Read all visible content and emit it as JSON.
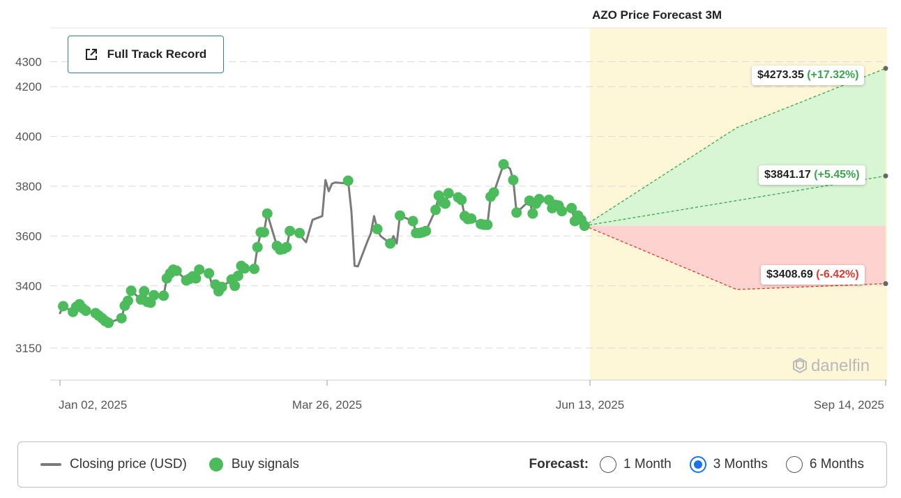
{
  "chart_data": {
    "type": "line",
    "title": "AZO Price Forecast 3M",
    "y_ticks": [
      3150,
      3400,
      3600,
      3800,
      4000,
      4200,
      4300
    ],
    "x_ticks": [
      "Jan 02, 2025",
      "Mar 26, 2025",
      "Jun 13, 2025",
      "Sep 14, 2025"
    ],
    "y_range": [
      3050,
      4400
    ],
    "x_range": [
      "2025-01-02",
      "2025-09-14"
    ],
    "grid": true,
    "series": [
      {
        "name": "Closing price (USD)",
        "points": [
          [
            "2025-01-02",
            3290
          ],
          [
            "2025-01-03",
            3318
          ],
          [
            "2025-01-06",
            3295
          ],
          [
            "2025-01-07",
            3315
          ],
          [
            "2025-01-08",
            3326
          ],
          [
            "2025-01-09",
            3310
          ],
          [
            "2025-01-10",
            3300
          ],
          [
            "2025-01-13",
            3290
          ],
          [
            "2025-01-14",
            3280
          ],
          [
            "2025-01-15",
            3270
          ],
          [
            "2025-01-16",
            3258
          ],
          [
            "2025-01-17",
            3251
          ],
          [
            "2025-01-21",
            3270
          ],
          [
            "2025-01-22",
            3320
          ],
          [
            "2025-01-23",
            3340
          ],
          [
            "2025-01-24",
            3380
          ],
          [
            "2025-01-27",
            3345
          ],
          [
            "2025-01-28",
            3378
          ],
          [
            "2025-01-29",
            3335
          ],
          [
            "2025-01-30",
            3332
          ],
          [
            "2025-01-31",
            3362
          ],
          [
            "2025-02-03",
            3360
          ],
          [
            "2025-02-04",
            3430
          ],
          [
            "2025-02-05",
            3450
          ],
          [
            "2025-02-06",
            3465
          ],
          [
            "2025-02-07",
            3460
          ],
          [
            "2025-02-10",
            3422
          ],
          [
            "2025-02-11",
            3428
          ],
          [
            "2025-02-12",
            3438
          ],
          [
            "2025-02-13",
            3430
          ],
          [
            "2025-02-14",
            3465
          ],
          [
            "2025-02-17",
            3450
          ],
          [
            "2025-02-18",
            3400
          ],
          [
            "2025-02-19",
            3405
          ],
          [
            "2025-02-20",
            3378
          ],
          [
            "2025-02-21",
            3395
          ],
          [
            "2025-02-24",
            3425
          ],
          [
            "2025-02-25",
            3400
          ],
          [
            "2025-02-26",
            3440
          ],
          [
            "2025-02-27",
            3480
          ],
          [
            "2025-02-28",
            3470
          ],
          [
            "2025-03-03",
            3468
          ],
          [
            "2025-03-04",
            3555
          ],
          [
            "2025-03-05",
            3615
          ],
          [
            "2025-03-06",
            3615
          ],
          [
            "2025-03-07",
            3690
          ],
          [
            "2025-03-10",
            3560
          ],
          [
            "2025-03-11",
            3545
          ],
          [
            "2025-03-12",
            3548
          ],
          [
            "2025-03-13",
            3555
          ],
          [
            "2025-03-14",
            3620
          ],
          [
            "2025-03-17",
            3612
          ],
          [
            "2025-03-18",
            3590
          ],
          [
            "2025-03-19",
            3575
          ],
          [
            "2025-03-20",
            3620
          ],
          [
            "2025-03-21",
            3665
          ],
          [
            "2025-03-24",
            3680
          ],
          [
            "2025-03-25",
            3825
          ],
          [
            "2025-03-26",
            3780
          ],
          [
            "2025-03-27",
            3810
          ],
          [
            "2025-03-28",
            3815
          ],
          [
            "2025-03-31",
            3812
          ],
          [
            "2025-04-01",
            3822
          ],
          [
            "2025-04-02",
            3700
          ],
          [
            "2025-04-03",
            3480
          ],
          [
            "2025-04-04",
            3478
          ],
          [
            "2025-04-07",
            3580
          ],
          [
            "2025-04-08",
            3610
          ],
          [
            "2025-04-09",
            3680
          ],
          [
            "2025-04-10",
            3628
          ],
          [
            "2025-04-11",
            3600
          ],
          [
            "2025-04-14",
            3570
          ],
          [
            "2025-04-15",
            3600
          ],
          [
            "2025-04-16",
            3570
          ],
          [
            "2025-04-17",
            3682
          ],
          [
            "2025-04-21",
            3660
          ],
          [
            "2025-04-22",
            3612
          ],
          [
            "2025-04-23",
            3612
          ],
          [
            "2025-04-24",
            3615
          ],
          [
            "2025-04-25",
            3620
          ],
          [
            "2025-04-28",
            3705
          ],
          [
            "2025-04-29",
            3762
          ],
          [
            "2025-04-30",
            3738
          ],
          [
            "2025-05-01",
            3730
          ],
          [
            "2025-05-02",
            3772
          ],
          [
            "2025-05-05",
            3755
          ],
          [
            "2025-05-06",
            3745
          ],
          [
            "2025-05-07",
            3680
          ],
          [
            "2025-05-08",
            3668
          ],
          [
            "2025-05-09",
            3670
          ],
          [
            "2025-05-12",
            3648
          ],
          [
            "2025-05-13",
            3645
          ],
          [
            "2025-05-14",
            3645
          ],
          [
            "2025-05-15",
            3758
          ],
          [
            "2025-05-16",
            3775
          ],
          [
            "2025-05-19",
            3888
          ],
          [
            "2025-05-20",
            3880
          ],
          [
            "2025-05-21",
            3870
          ],
          [
            "2025-05-22",
            3825
          ],
          [
            "2025-05-23",
            3694
          ],
          [
            "2025-05-27",
            3742
          ],
          [
            "2025-05-28",
            3690
          ],
          [
            "2025-05-29",
            3730
          ],
          [
            "2025-05-30",
            3748
          ],
          [
            "2025-06-02",
            3745
          ],
          [
            "2025-06-03",
            3712
          ],
          [
            "2025-06-04",
            3725
          ],
          [
            "2025-06-05",
            3722
          ],
          [
            "2025-06-06",
            3700
          ],
          [
            "2025-06-09",
            3712
          ],
          [
            "2025-06-10",
            3660
          ],
          [
            "2025-06-11",
            3682
          ],
          [
            "2025-06-12",
            3665
          ],
          [
            "2025-06-13",
            3641
          ]
        ]
      }
    ],
    "buy_signal_dates": [
      "2025-01-03",
      "2025-01-06",
      "2025-01-07",
      "2025-01-08",
      "2025-01-09",
      "2025-01-10",
      "2025-01-13",
      "2025-01-14",
      "2025-01-15",
      "2025-01-16",
      "2025-01-17",
      "2025-01-21",
      "2025-01-22",
      "2025-01-23",
      "2025-01-24",
      "2025-01-27",
      "2025-01-28",
      "2025-01-29",
      "2025-01-30",
      "2025-01-31",
      "2025-02-03",
      "2025-02-04",
      "2025-02-05",
      "2025-02-06",
      "2025-02-07",
      "2025-02-10",
      "2025-02-11",
      "2025-02-12",
      "2025-02-13",
      "2025-02-14",
      "2025-02-17",
      "2025-02-19",
      "2025-02-20",
      "2025-02-21",
      "2025-02-24",
      "2025-02-25",
      "2025-02-26",
      "2025-02-27",
      "2025-02-28",
      "2025-03-03",
      "2025-03-04",
      "2025-03-05",
      "2025-03-06",
      "2025-03-07",
      "2025-03-10",
      "2025-03-11",
      "2025-03-12",
      "2025-03-13",
      "2025-03-14",
      "2025-03-17",
      "2025-04-01",
      "2025-04-10",
      "2025-04-14",
      "2025-04-17",
      "2025-04-21",
      "2025-04-22",
      "2025-04-23",
      "2025-04-24",
      "2025-04-25",
      "2025-04-28",
      "2025-04-29",
      "2025-04-30",
      "2025-05-01",
      "2025-05-02",
      "2025-05-05",
      "2025-05-06",
      "2025-05-07",
      "2025-05-08",
      "2025-05-09",
      "2025-05-12",
      "2025-05-13",
      "2025-05-14",
      "2025-05-15",
      "2025-05-16",
      "2025-05-19",
      "2025-05-22",
      "2025-05-23",
      "2025-05-27",
      "2025-05-28",
      "2025-05-29",
      "2025-05-30",
      "2025-06-02",
      "2025-06-03",
      "2025-06-04",
      "2025-06-05",
      "2025-06-06",
      "2025-06-09",
      "2025-06-10",
      "2025-06-11",
      "2025-06-12",
      "2025-06-13"
    ],
    "forecast": {
      "start": [
        "2025-06-13",
        3641
      ],
      "scenarios": [
        {
          "name": "high",
          "points": [
            [
              "2025-07-30",
              4035
            ],
            [
              "2025-09-14",
              4273.35
            ]
          ],
          "price_label": "$4273.35",
          "change_label": "(+17.32%)"
        },
        {
          "name": "mid",
          "points": [
            [
              "2025-09-14",
              3841.17
            ]
          ],
          "price_label": "$3841.17",
          "change_label": "(+5.45%)"
        },
        {
          "name": "low",
          "points": [
            [
              "2025-07-30",
              3385
            ],
            [
              "2025-09-14",
              3408.69
            ]
          ],
          "price_label": "$3408.69",
          "change_label": "(-6.42%)"
        }
      ]
    },
    "colors": {
      "price_line": "#7a7a7a",
      "buy_signal": "#4cbb5c",
      "forecast_bg": "#fdf7d7",
      "upside_fill": "#d8f5d4",
      "downside_fill": "#fdd2cf",
      "upside_line": "#3aa64b",
      "downside_line": "#e0382b",
      "positive_text": "#3aa64b",
      "negative_text": "#e0382b"
    }
  },
  "ui": {
    "track_button_label": "Full Track Record",
    "watermark": "danelfin",
    "legend": {
      "closing_price_label": "Closing price (USD)",
      "buy_signals_label": "Buy signals",
      "forecast_label": "Forecast:",
      "options": [
        {
          "label": "1 Month",
          "checked": false
        },
        {
          "label": "3 Months",
          "checked": true
        },
        {
          "label": "6 Months",
          "checked": false
        }
      ]
    }
  }
}
